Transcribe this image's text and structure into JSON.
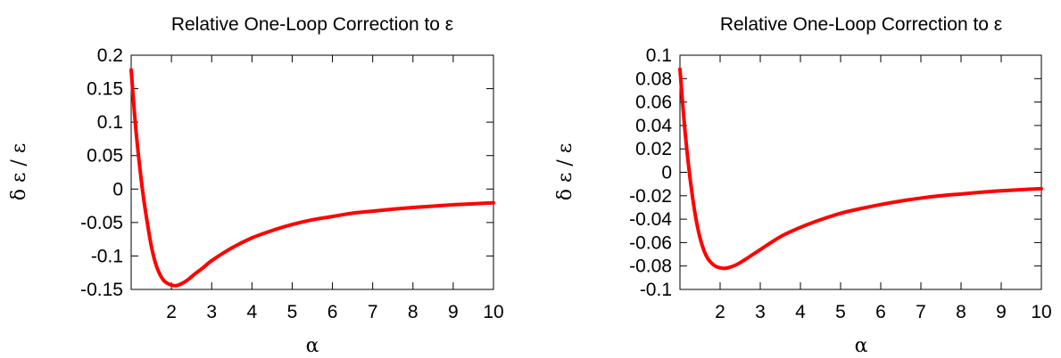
{
  "chart_data": [
    {
      "type": "line",
      "title": "Relative One-Loop Correction to ε",
      "xlabel": "α",
      "ylabel": "δ ε / ε",
      "xlim": [
        1,
        10
      ],
      "ylim": [
        -0.15,
        0.2
      ],
      "xticks": [
        "2",
        "3",
        "4",
        "5",
        "6",
        "7",
        "8",
        "9",
        "10"
      ],
      "yticks": [
        "0.2",
        "0.15",
        "0.1",
        "0.05",
        "0",
        "-0.05",
        "-0.1",
        "-0.15"
      ],
      "grid": false,
      "color": "#ff0000",
      "series": [
        {
          "x": [
            1.0,
            1.1,
            1.2,
            1.3,
            1.4,
            1.5,
            1.6,
            1.7,
            1.8,
            1.9,
            2.0,
            2.1,
            2.2,
            2.4,
            2.6,
            2.8,
            3.0,
            3.5,
            4.0,
            4.5,
            5.0,
            5.5,
            6.0,
            6.5,
            7.0,
            7.5,
            8.0,
            8.5,
            9.0,
            9.5,
            10.0
          ],
          "y": [
            0.178,
            0.1,
            0.04,
            -0.01,
            -0.05,
            -0.085,
            -0.11,
            -0.126,
            -0.136,
            -0.141,
            -0.1435,
            -0.1445,
            -0.143,
            -0.136,
            -0.126,
            -0.117,
            -0.107,
            -0.088,
            -0.073,
            -0.062,
            -0.053,
            -0.046,
            -0.041,
            -0.036,
            -0.033,
            -0.03,
            -0.0275,
            -0.0255,
            -0.0235,
            -0.022,
            -0.0205
          ]
        }
      ]
    },
    {
      "type": "line",
      "title": "Relative One-Loop Correction to ε",
      "xlabel": "α",
      "ylabel": "δ ε / ε",
      "xlim": [
        1,
        10
      ],
      "ylim": [
        -0.1,
        0.1
      ],
      "xticks": [
        "2",
        "3",
        "4",
        "5",
        "6",
        "7",
        "8",
        "9",
        "10"
      ],
      "yticks": [
        "0.1",
        "0.08",
        "0.06",
        "0.04",
        "0.02",
        "0",
        "-0.02",
        "-0.04",
        "-0.06",
        "-0.08",
        "-0.1"
      ],
      "grid": false,
      "color": "#ff0000",
      "series": [
        {
          "x": [
            1.0,
            1.1,
            1.2,
            1.3,
            1.4,
            1.5,
            1.6,
            1.7,
            1.8,
            1.9,
            2.0,
            2.1,
            2.2,
            2.4,
            2.6,
            2.8,
            3.0,
            3.5,
            4.0,
            4.5,
            5.0,
            5.5,
            6.0,
            6.5,
            7.0,
            7.5,
            8.0,
            8.5,
            9.0,
            9.5,
            10.0
          ],
          "y": [
            0.088,
            0.045,
            0.01,
            -0.018,
            -0.04,
            -0.056,
            -0.067,
            -0.074,
            -0.078,
            -0.0805,
            -0.0815,
            -0.082,
            -0.0815,
            -0.079,
            -0.075,
            -0.0705,
            -0.066,
            -0.055,
            -0.047,
            -0.0405,
            -0.035,
            -0.031,
            -0.0275,
            -0.0245,
            -0.022,
            -0.02,
            -0.0185,
            -0.017,
            -0.0158,
            -0.0148,
            -0.014
          ]
        }
      ]
    }
  ]
}
